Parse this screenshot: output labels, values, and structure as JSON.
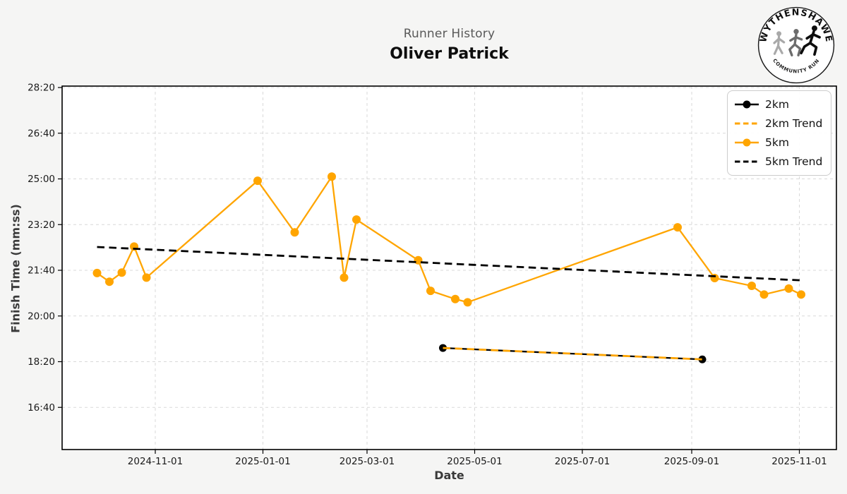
{
  "header": {
    "subtitle": "Runner History",
    "title": "Oliver Patrick"
  },
  "logo": {
    "top_text": "WYTHENSHAWE",
    "bottom_text": "COMMUNITY RUN"
  },
  "colors": {
    "accent_orange": "#FFA500",
    "series_black": "#000000",
    "figure_bg": "#f5f5f4",
    "plot_bg": "#ffffff",
    "grid": "#d9d9d9",
    "subtitle_gray": "#595959"
  },
  "chart_data": {
    "type": "line",
    "title": "Runner History",
    "subtitle": "Oliver Patrick",
    "xlabel": "Date",
    "ylabel": "Finish Time (mm:ss)",
    "grid": true,
    "legend_position": "upper right",
    "x_ticks": [
      "2024-11-01",
      "2025-01-01",
      "2025-03-01",
      "2025-05-01",
      "2025-07-01",
      "2025-09-01",
      "2025-11-01"
    ],
    "y_ticks": [
      "28:20",
      "26:40",
      "25:00",
      "23:20",
      "21:40",
      "20:00",
      "18:20",
      "16:40"
    ],
    "ylim": [
      "15:10",
      "28:25"
    ],
    "series": [
      {
        "name": "2km",
        "color": "#000000",
        "style": "solid",
        "marker": true,
        "points": [
          {
            "date": "2025-04-13",
            "time": "18:50"
          },
          {
            "date": "2025-09-07",
            "time": "18:25"
          }
        ]
      },
      {
        "name": "2km Trend",
        "color": "#FFA500",
        "style": "dashed",
        "marker": false,
        "points": [
          {
            "date": "2025-04-13",
            "time": "18:50"
          },
          {
            "date": "2025-09-07",
            "time": "18:25"
          }
        ]
      },
      {
        "name": "5km",
        "color": "#FFA500",
        "style": "solid",
        "marker": true,
        "points": [
          {
            "date": "2024-09-29",
            "time": "21:34"
          },
          {
            "date": "2024-10-06",
            "time": "21:15"
          },
          {
            "date": "2024-10-13",
            "time": "21:35"
          },
          {
            "date": "2024-10-20",
            "time": "22:32"
          },
          {
            "date": "2024-10-27",
            "time": "21:24"
          },
          {
            "date": "2024-12-29",
            "time": "24:56"
          },
          {
            "date": "2025-01-19",
            "time": "23:03"
          },
          {
            "date": "2025-02-09",
            "time": "25:05"
          },
          {
            "date": "2025-02-16",
            "time": "21:24"
          },
          {
            "date": "2025-02-23",
            "time": "23:31"
          },
          {
            "date": "2025-03-30",
            "time": "22:02"
          },
          {
            "date": "2025-04-06",
            "time": "20:55"
          },
          {
            "date": "2025-04-20",
            "time": "20:37"
          },
          {
            "date": "2025-04-27",
            "time": "20:30"
          },
          {
            "date": "2025-08-24",
            "time": "23:14"
          },
          {
            "date": "2025-09-14",
            "time": "21:23"
          },
          {
            "date": "2025-10-05",
            "time": "21:06"
          },
          {
            "date": "2025-10-12",
            "time": "20:47"
          },
          {
            "date": "2025-10-26",
            "time": "21:00"
          },
          {
            "date": "2025-11-02",
            "time": "20:47"
          }
        ]
      },
      {
        "name": "5km Trend",
        "color": "#000000",
        "style": "dashed",
        "marker": false,
        "points": [
          {
            "date": "2024-09-29",
            "time": "22:31"
          },
          {
            "date": "2025-11-02",
            "time": "21:18"
          }
        ]
      }
    ]
  }
}
